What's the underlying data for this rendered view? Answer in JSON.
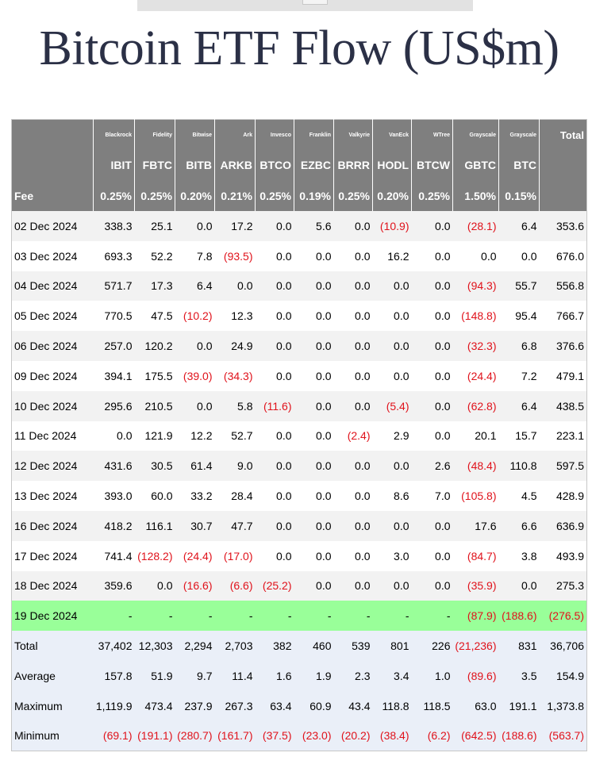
{
  "title": "Bitcoin ETF Flow (US$m)",
  "issuers": [
    "",
    "Blackrock",
    "Fidelity",
    "Bitwise",
    "Ark",
    "Invesco",
    "Franklin",
    "Valkyrie",
    "VanEck",
    "WTree",
    "Grayscale",
    "Grayscale",
    "Total"
  ],
  "tickers": [
    "",
    "IBIT",
    "FBTC",
    "BITB",
    "ARKB",
    "BTCO",
    "EZBC",
    "BRRR",
    "HODL",
    "BTCW",
    "GBTC",
    "BTC",
    ""
  ],
  "fees": [
    "Fee",
    "0.25%",
    "0.25%",
    "0.20%",
    "0.21%",
    "0.25%",
    "0.19%",
    "0.25%",
    "0.20%",
    "0.25%",
    "1.50%",
    "0.15%",
    ""
  ],
  "rows": [
    [
      "02 Dec 2024",
      "338.3",
      "25.1",
      "0.0",
      "17.2",
      "0.0",
      "5.6",
      "0.0",
      "(10.9)",
      "0.0",
      "(28.1)",
      "6.4",
      "353.6"
    ],
    [
      "03 Dec 2024",
      "693.3",
      "52.2",
      "7.8",
      "(93.5)",
      "0.0",
      "0.0",
      "0.0",
      "16.2",
      "0.0",
      "0.0",
      "0.0",
      "676.0"
    ],
    [
      "04 Dec 2024",
      "571.7",
      "17.3",
      "6.4",
      "0.0",
      "0.0",
      "0.0",
      "0.0",
      "0.0",
      "0.0",
      "(94.3)",
      "55.7",
      "556.8"
    ],
    [
      "05 Dec 2024",
      "770.5",
      "47.5",
      "(10.2)",
      "12.3",
      "0.0",
      "0.0",
      "0.0",
      "0.0",
      "0.0",
      "(148.8)",
      "95.4",
      "766.7"
    ],
    [
      "06 Dec 2024",
      "257.0",
      "120.2",
      "0.0",
      "24.9",
      "0.0",
      "0.0",
      "0.0",
      "0.0",
      "0.0",
      "(32.3)",
      "6.8",
      "376.6"
    ],
    [
      "09 Dec 2024",
      "394.1",
      "175.5",
      "(39.0)",
      "(34.3)",
      "0.0",
      "0.0",
      "0.0",
      "0.0",
      "0.0",
      "(24.4)",
      "7.2",
      "479.1"
    ],
    [
      "10 Dec 2024",
      "295.6",
      "210.5",
      "0.0",
      "5.8",
      "(11.6)",
      "0.0",
      "0.0",
      "(5.4)",
      "0.0",
      "(62.8)",
      "6.4",
      "438.5"
    ],
    [
      "11 Dec 2024",
      "0.0",
      "121.9",
      "12.2",
      "52.7",
      "0.0",
      "0.0",
      "(2.4)",
      "2.9",
      "0.0",
      "20.1",
      "15.7",
      "223.1"
    ],
    [
      "12 Dec 2024",
      "431.6",
      "30.5",
      "61.4",
      "9.0",
      "0.0",
      "0.0",
      "0.0",
      "0.0",
      "2.6",
      "(48.4)",
      "110.8",
      "597.5"
    ],
    [
      "13 Dec 2024",
      "393.0",
      "60.0",
      "33.2",
      "28.4",
      "0.0",
      "0.0",
      "0.0",
      "8.6",
      "7.0",
      "(105.8)",
      "4.5",
      "428.9"
    ],
    [
      "16 Dec 2024",
      "418.2",
      "116.1",
      "30.7",
      "47.7",
      "0.0",
      "0.0",
      "0.0",
      "0.0",
      "0.0",
      "17.6",
      "6.6",
      "636.9"
    ],
    [
      "17 Dec 2024",
      "741.4",
      "(128.2)",
      "(24.4)",
      "(17.0)",
      "0.0",
      "0.0",
      "0.0",
      "3.0",
      "0.0",
      "(84.7)",
      "3.8",
      "493.9"
    ],
    [
      "18 Dec 2024",
      "359.6",
      "0.0",
      "(16.6)",
      "(6.6)",
      "(25.2)",
      "0.0",
      "0.0",
      "0.0",
      "0.0",
      "(35.9)",
      "0.0",
      "275.3"
    ]
  ],
  "today_row": [
    "19 Dec 2024",
    "-",
    "-",
    "-",
    "-",
    "-",
    "-",
    "-",
    "-",
    "-",
    "(87.9)",
    "(188.6)",
    "(276.5)"
  ],
  "summary_rows": [
    [
      "Total",
      "37,402",
      "12,303",
      "2,294",
      "2,703",
      "382",
      "460",
      "539",
      "801",
      "226",
      "(21,236)",
      "831",
      "36,706"
    ],
    [
      "Average",
      "157.8",
      "51.9",
      "9.7",
      "11.4",
      "1.6",
      "1.9",
      "2.3",
      "3.4",
      "1.0",
      "(89.6)",
      "3.5",
      "154.9"
    ],
    [
      "Maximum",
      "1,119.9",
      "473.4",
      "237.9",
      "267.3",
      "63.4",
      "60.9",
      "43.4",
      "118.8",
      "118.5",
      "63.0",
      "191.1",
      "1,373.8"
    ],
    [
      "Minimum",
      "(69.1)",
      "(191.1)",
      "(280.7)",
      "(161.7)",
      "(37.5)",
      "(23.0)",
      "(20.2)",
      "(38.4)",
      "(6.2)",
      "(642.5)",
      "(188.6)",
      "(563.7)"
    ]
  ],
  "colors": {
    "header_bg": "#7f7f7f",
    "negative": "#e0121b",
    "today_bg": "#99ff99",
    "summary_bg": "#eaeff8",
    "stripe_bg": "#f2f2f2",
    "title": "#2b3046"
  }
}
